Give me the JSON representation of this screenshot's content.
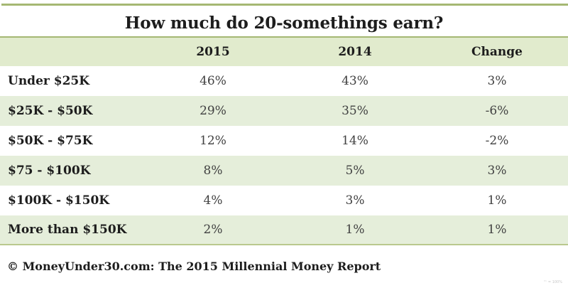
{
  "page": {
    "title": "How much do 20-somethings earn?",
    "footer": "© MoneyUnder30.com: The 2015 Millennial Money Report",
    "fine_print": "™ = 100%"
  },
  "table": {
    "columns": [
      "",
      "2015",
      "2014",
      "Change"
    ],
    "rows": [
      {
        "label": "Under $25K",
        "y2015": "46%",
        "y2014": "43%",
        "change": "3%"
      },
      {
        "label": "$25K - $50K",
        "y2015": "29%",
        "y2014": "35%",
        "change": "-6%"
      },
      {
        "label": "$50K - $75K",
        "y2015": "12%",
        "y2014": "14%",
        "change": "-2%"
      },
      {
        "label": "$75 - $100K",
        "y2015": "8%",
        "y2014": "5%",
        "change": "3%"
      },
      {
        "label": "$100K - $150K",
        "y2015": "4%",
        "y2014": "3%",
        "change": "1%"
      },
      {
        "label": "More than $150K",
        "y2015": "2%",
        "y2014": "1%",
        "change": "1%"
      }
    ]
  },
  "chart_data": {
    "type": "table",
    "title": "How much do 20-somethings earn?",
    "categories": [
      "Under $25K",
      "$25K - $50K",
      "$50K - $75K",
      "$75 - $100K",
      "$100K - $150K",
      "More than $150K"
    ],
    "series": [
      {
        "name": "2015",
        "values": [
          46,
          29,
          12,
          8,
          4,
          2
        ]
      },
      {
        "name": "2014",
        "values": [
          43,
          35,
          14,
          5,
          3,
          1
        ]
      },
      {
        "name": "Change",
        "values": [
          3,
          -6,
          -2,
          3,
          1,
          1
        ]
      }
    ],
    "unit": "%",
    "source": "© MoneyUnder30.com: The 2015 Millennial Money Report"
  },
  "colors": {
    "accent_olive": "#a5b873",
    "header_bg": "#e1ebcd",
    "row_alt_bg": "#e5eeda",
    "bottom_border": "#b9c98e",
    "text": "#1d1d1d",
    "value_text": "#414141"
  }
}
